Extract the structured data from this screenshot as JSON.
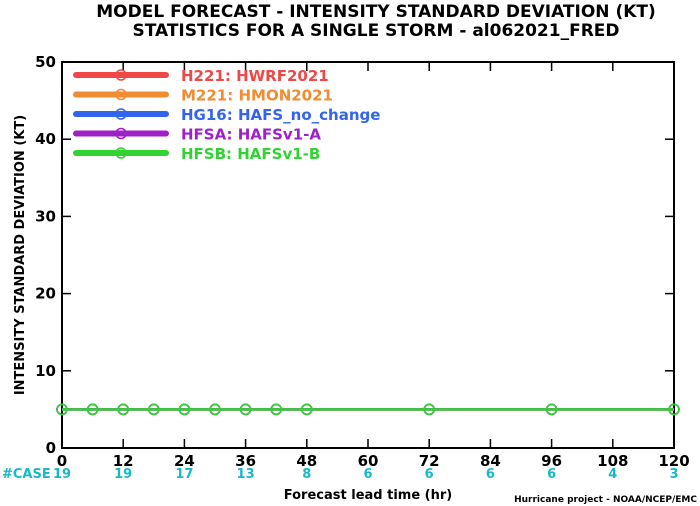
{
  "titles": {
    "line1": "MODEL FORECAST - INTENSITY STANDARD DEVIATION (KT)",
    "line2": "STATISTICS FOR A SINGLE STORM - al062021_FRED"
  },
  "credit": "Hurricane project - NOAA/NCEP/EMC",
  "case_label": "#CASE",
  "colors": {
    "H221": "#f04848",
    "M221": "#f08c32",
    "HG16": "#3264f0",
    "HFSA": "#a020c8",
    "HFSB": "#32d232",
    "case": "#17b8c8",
    "axis": "#000000"
  },
  "chart_data": {
    "type": "line",
    "title": "MODEL FORECAST - INTENSITY STANDARD DEVIATION (KT)",
    "subtitle": "STATISTICS FOR A SINGLE STORM - al062021_FRED",
    "xlabel": "Forecast lead time (hr)",
    "ylabel": "INTENSITY STANDARD DEVIATION (KT)",
    "xlim": [
      0,
      120
    ],
    "ylim": [
      0,
      50
    ],
    "xticks": [
      0,
      12,
      24,
      36,
      48,
      60,
      72,
      84,
      96,
      108,
      120
    ],
    "yticks": [
      0,
      10,
      20,
      30,
      40,
      50
    ],
    "grid": false,
    "legend_position": "top-left",
    "x": [
      0,
      6,
      12,
      18,
      24,
      30,
      36,
      42,
      48,
      72,
      96,
      120
    ],
    "series": [
      {
        "name": "H221: HWRF2021",
        "key": "H221",
        "values": [
          5,
          5,
          5,
          5,
          5,
          5,
          5,
          5,
          5,
          5,
          5,
          5
        ]
      },
      {
        "name": "M221: HMON2021",
        "key": "M221",
        "values": [
          5,
          5,
          5,
          5,
          5,
          5,
          5,
          5,
          5,
          5,
          5,
          5
        ]
      },
      {
        "name": "HG16: HAFS_no_change",
        "key": "HG16",
        "values": [
          5,
          5,
          5,
          5,
          5,
          5,
          5,
          5,
          5,
          5,
          5,
          5
        ]
      },
      {
        "name": "HFSA: HAFSv1-A",
        "key": "HFSA",
        "values": [
          5,
          5,
          5,
          5,
          5,
          5,
          5,
          5,
          5,
          5,
          5,
          5
        ]
      },
      {
        "name": "HFSB: HAFSv1-B",
        "key": "HFSB",
        "values": [
          5,
          5,
          5,
          5,
          5,
          5,
          5,
          5,
          5,
          5,
          5,
          5
        ]
      }
    ],
    "case_counts": [
      {
        "x": 0,
        "count": "19"
      },
      {
        "x": 12,
        "count": "19"
      },
      {
        "x": 24,
        "count": "17"
      },
      {
        "x": 36,
        "count": "13"
      },
      {
        "x": 48,
        "count": "8"
      },
      {
        "x": 60,
        "count": "6"
      },
      {
        "x": 72,
        "count": "6"
      },
      {
        "x": 84,
        "count": "6"
      },
      {
        "x": 96,
        "count": "6"
      },
      {
        "x": 108,
        "count": "4"
      },
      {
        "x": 120,
        "count": "3"
      }
    ]
  }
}
